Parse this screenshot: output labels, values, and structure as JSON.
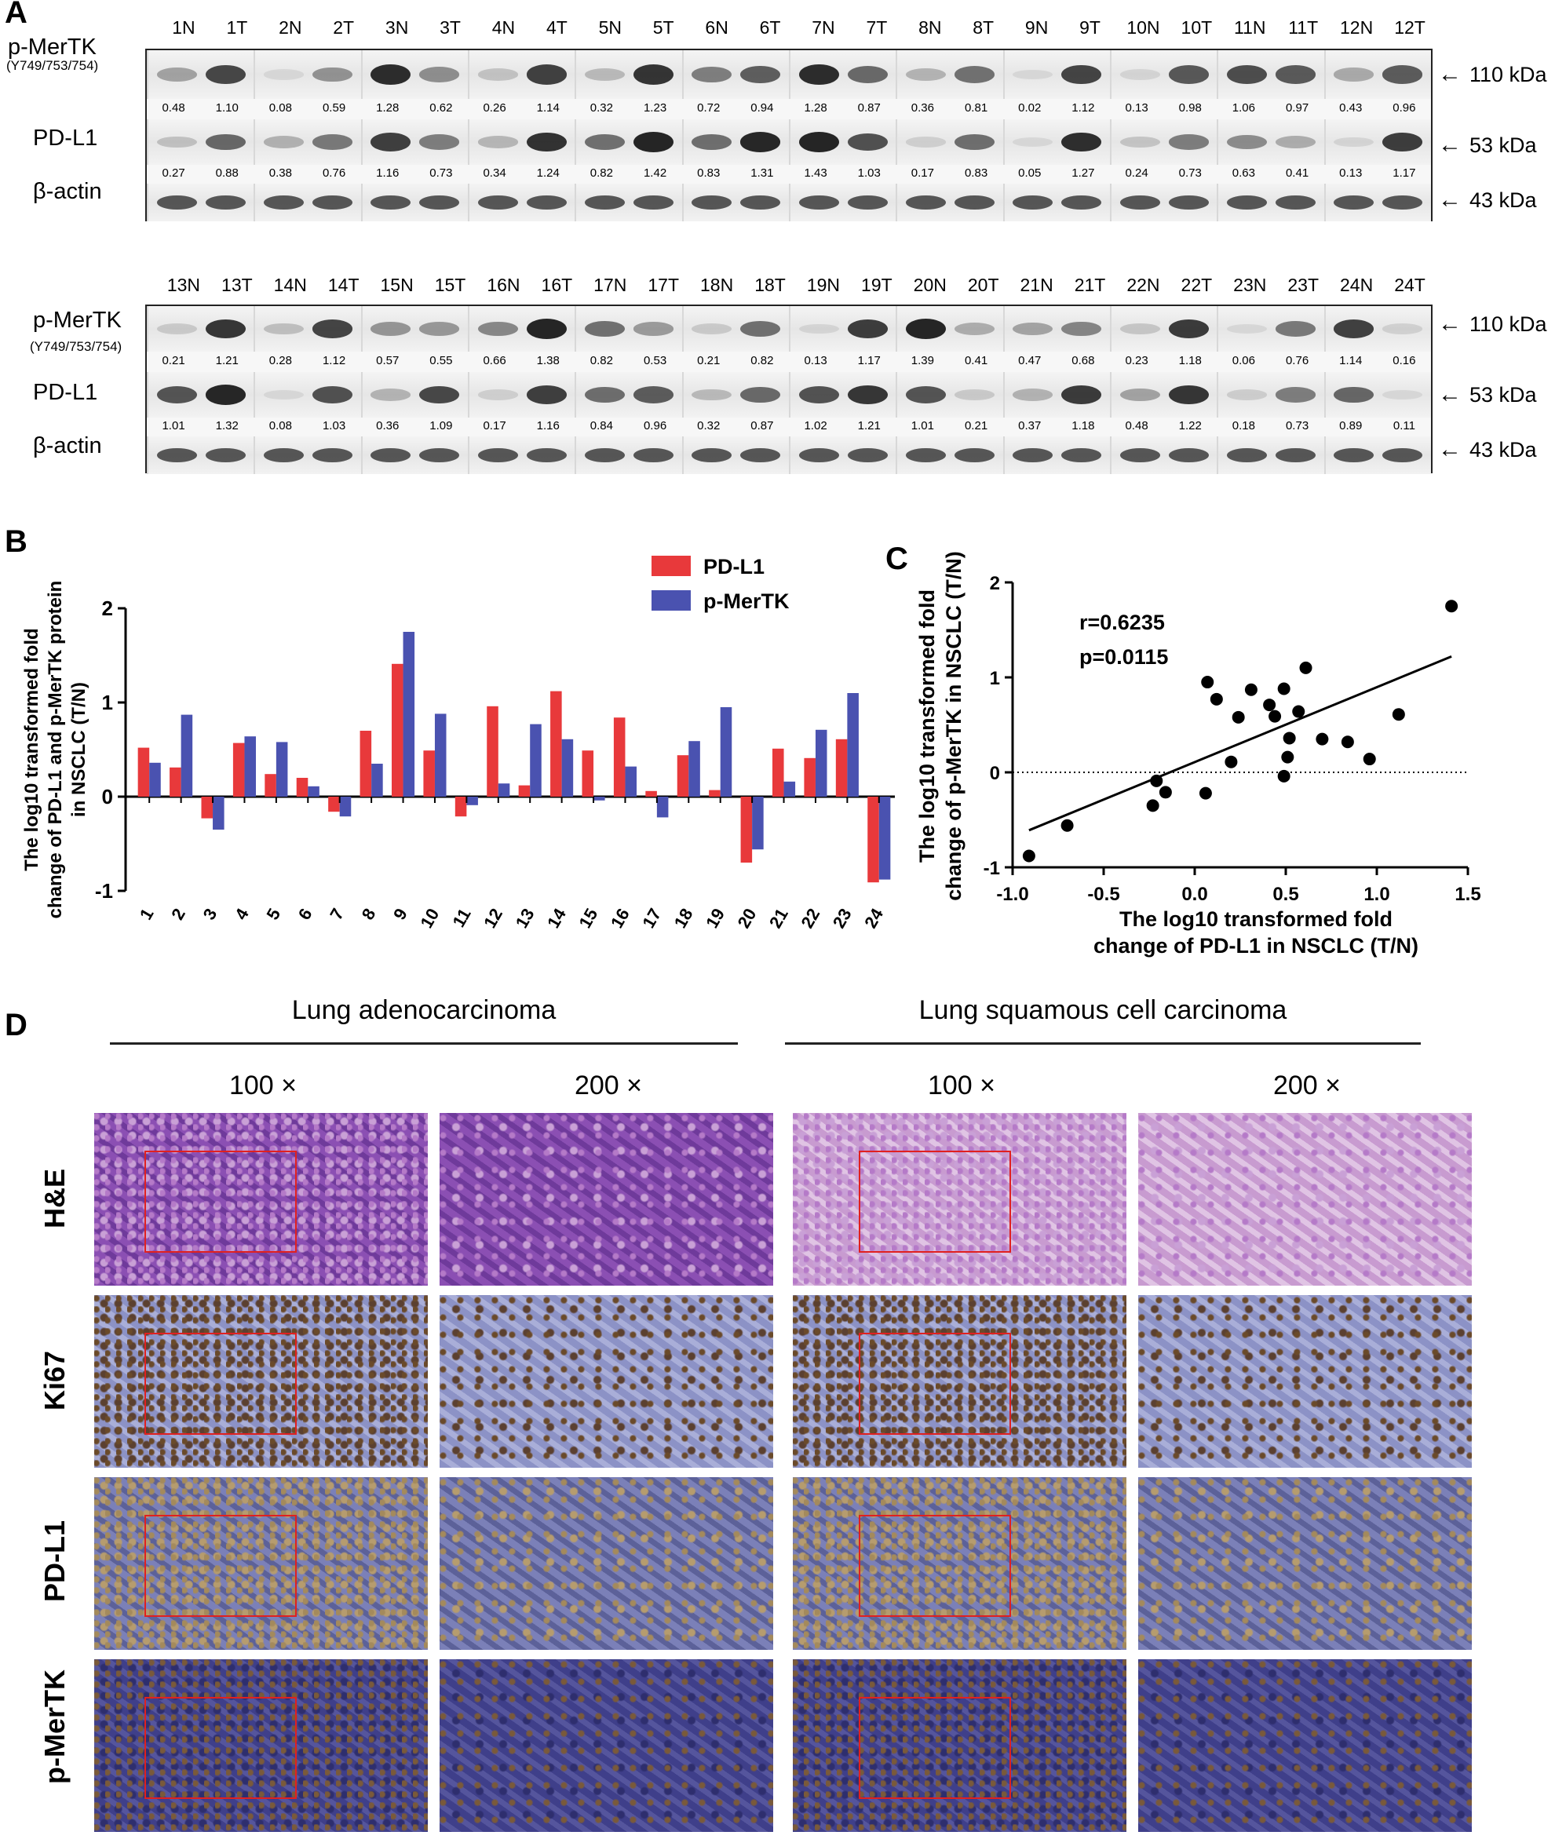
{
  "panels": {
    "a": "A",
    "b": "B",
    "c": "C",
    "d": "D"
  },
  "western_blot": {
    "blot1": {
      "lanes": [
        "1N",
        "1T",
        "2N",
        "2T",
        "3N",
        "3T",
        "4N",
        "4T",
        "5N",
        "5T",
        "6N",
        "6T",
        "7N",
        "7T",
        "8N",
        "8T",
        "9N",
        "9T",
        "10N",
        "10T",
        "11N",
        "11T",
        "12N",
        "12T"
      ],
      "pmertk_values": [
        "0.48",
        "1.10",
        "0.08",
        "0.59",
        "1.28",
        "0.62",
        "0.26",
        "1.14",
        "0.32",
        "1.23",
        "0.72",
        "0.94",
        "1.28",
        "0.87",
        "0.36",
        "0.81",
        "0.02",
        "1.12",
        "0.13",
        "0.98",
        "1.06",
        "0.97",
        "0.43",
        "0.96"
      ],
      "pdl1_values": [
        "0.27",
        "0.88",
        "0.38",
        "0.76",
        "1.16",
        "0.73",
        "0.34",
        "1.24",
        "0.82",
        "1.42",
        "0.83",
        "1.31",
        "1.43",
        "1.03",
        "0.17",
        "0.83",
        "0.05",
        "1.27",
        "0.24",
        "0.73",
        "0.63",
        "0.41",
        "0.13",
        "1.17"
      ]
    },
    "blot2": {
      "lanes": [
        "13N",
        "13T",
        "14N",
        "14T",
        "15N",
        "15T",
        "16N",
        "16T",
        "17N",
        "17T",
        "18N",
        "18T",
        "19N",
        "19T",
        "20N",
        "20T",
        "21N",
        "21T",
        "22N",
        "22T",
        "23N",
        "23T",
        "24N",
        "24T"
      ],
      "pmertk_values": [
        "0.21",
        "1.21",
        "0.28",
        "1.12",
        "0.57",
        "0.55",
        "0.66",
        "1.38",
        "0.82",
        "0.53",
        "0.21",
        "0.82",
        "0.13",
        "1.17",
        "1.39",
        "0.41",
        "0.47",
        "0.68",
        "0.23",
        "1.18",
        "0.06",
        "0.76",
        "1.14",
        "0.16"
      ],
      "pdl1_values": [
        "1.01",
        "1.32",
        "0.08",
        "1.03",
        "0.36",
        "1.09",
        "0.17",
        "1.16",
        "0.84",
        "0.96",
        "0.32",
        "0.87",
        "1.02",
        "1.21",
        "1.01",
        "0.21",
        "0.37",
        "1.18",
        "0.48",
        "1.22",
        "0.18",
        "0.73",
        "0.89",
        "0.11"
      ]
    },
    "labels": {
      "pmertk": "p-MerTK",
      "pmertk_site": "(Y749/753/754)",
      "pdl1": "PD-L1",
      "actin": "β-actin"
    },
    "kda": {
      "pmertk": "110 kDa",
      "pdl1": "53 kDa",
      "actin": "43 kDa"
    },
    "arrow": "←"
  },
  "chart_data": [
    {
      "type": "bar",
      "title": "",
      "ylabel": "The log10 transformed fold change of PD-L1 and p-MerTK protein in NSCLC (T/N)",
      "xlabel": "",
      "categories": [
        "1",
        "2",
        "3",
        "4",
        "5",
        "6",
        "7",
        "8",
        "9",
        "10",
        "11",
        "12",
        "13",
        "14",
        "15",
        "16",
        "17",
        "18",
        "19",
        "20",
        "21",
        "22",
        "23",
        "24"
      ],
      "series": [
        {
          "name": "PD-L1",
          "color": "#e8393b",
          "values": [
            0.52,
            0.31,
            -0.23,
            0.57,
            0.24,
            0.2,
            -0.16,
            0.7,
            1.41,
            0.49,
            -0.21,
            0.96,
            0.12,
            1.12,
            0.49,
            0.84,
            0.06,
            0.44,
            0.07,
            -0.7,
            0.51,
            0.41,
            0.61,
            -0.91
          ]
        },
        {
          "name": "p-MerTK",
          "color": "#4a52b0",
          "values": [
            0.36,
            0.87,
            -0.35,
            0.64,
            0.58,
            0.11,
            -0.21,
            0.35,
            1.75,
            0.88,
            -0.09,
            0.14,
            0.77,
            0.61,
            -0.04,
            0.32,
            -0.22,
            0.59,
            0.95,
            -0.56,
            0.16,
            0.71,
            1.1,
            -0.88
          ]
        }
      ],
      "yticks": [
        "-1",
        "0",
        "1",
        "2"
      ],
      "ylim": [
        -1,
        2
      ],
      "legend": "top-right"
    },
    {
      "type": "scatter",
      "title": "",
      "xlabel": "The log10 transformed fold change of PD-L1 in NSCLC (T/N)",
      "ylabel": "The log10 transformed fold change of p-MerTK in NSCLC (T/N)",
      "xlim": [
        -1.0,
        1.5
      ],
      "ylim": [
        -1,
        2
      ],
      "xticks": [
        "-1.0",
        "-0.5",
        "0.0",
        "0.5",
        "1.0",
        "1.5"
      ],
      "yticks": [
        "-1",
        "0",
        "1",
        "2"
      ],
      "x": [
        0.52,
        0.31,
        -0.23,
        0.57,
        0.24,
        0.2,
        -0.16,
        0.7,
        1.41,
        0.49,
        -0.21,
        0.96,
        0.12,
        1.12,
        0.49,
        0.84,
        0.06,
        0.44,
        0.07,
        -0.7,
        0.51,
        0.41,
        0.61,
        -0.91
      ],
      "y": [
        0.36,
        0.87,
        -0.35,
        0.64,
        0.58,
        0.11,
        -0.21,
        0.35,
        1.75,
        0.88,
        -0.09,
        0.14,
        0.77,
        0.61,
        -0.04,
        0.32,
        -0.22,
        0.59,
        0.95,
        -0.56,
        0.16,
        0.71,
        1.1,
        -0.88
      ],
      "fit_line": {
        "x": [
          -0.91,
          1.41
        ],
        "y": [
          -0.61,
          1.22
        ]
      },
      "annotations": {
        "r": "r=0.6235",
        "p": "p=0.0115"
      }
    }
  ],
  "ihc": {
    "adeno_title": "Lung adenocarcinoma",
    "squamous_title": "Lung squamous cell carcinoma",
    "mag_100": "100 ×",
    "mag_200": "200 ×",
    "rows": [
      "H&E",
      "Ki67",
      "PD-L1",
      "p-MerTK"
    ]
  }
}
